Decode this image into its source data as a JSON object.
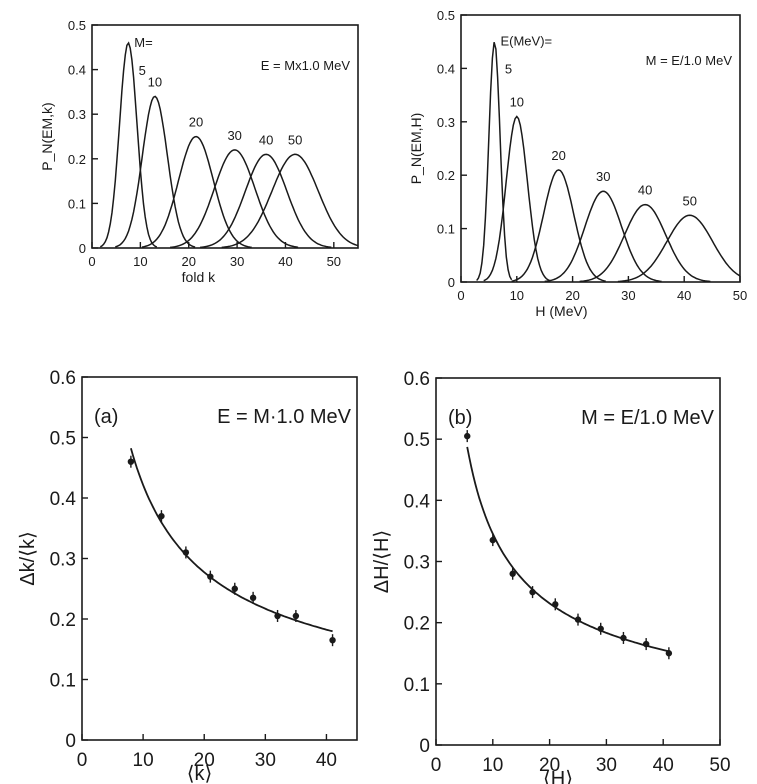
{
  "chart_data": [
    {
      "id": "top-left",
      "type": "line",
      "title": "",
      "xlabel": "fold   k",
      "ylabel": "P_N(EM,k)",
      "xlim": [
        0,
        55
      ],
      "ylim": [
        0,
        0.5
      ],
      "x_ticks": [
        "0",
        "10",
        "20",
        "30",
        "40",
        "50"
      ],
      "y_ticks": [
        "0",
        "0.1",
        "0.2",
        "0.3",
        "0.4",
        "0.5"
      ],
      "annotation": "E = Mx1.0 MeV",
      "label_prefix": "M=",
      "series": [
        {
          "name": "5",
          "peak_x": 7.5,
          "peak_y": 0.46,
          "sigma": 1.8
        },
        {
          "name": "10",
          "peak_x": 13,
          "peak_y": 0.34,
          "sigma": 2.6
        },
        {
          "name": "20",
          "peak_x": 21.5,
          "peak_y": 0.25,
          "sigma": 3.6
        },
        {
          "name": "30",
          "peak_x": 29.5,
          "peak_y": 0.22,
          "sigma": 4.2
        },
        {
          "name": "40",
          "peak_x": 36,
          "peak_y": 0.21,
          "sigma": 4.3
        },
        {
          "name": "50",
          "peak_x": 42,
          "peak_y": 0.21,
          "sigma": 4.8
        }
      ]
    },
    {
      "id": "top-right",
      "type": "line",
      "title": "",
      "xlabel": "H  (MeV)",
      "ylabel": "P_N(EM,H)",
      "xlim": [
        0,
        50
      ],
      "ylim": [
        0,
        0.5
      ],
      "x_ticks": [
        "0",
        "10",
        "20",
        "30",
        "40",
        "50"
      ],
      "y_ticks": [
        "0",
        "0.1",
        "0.2",
        "0.3",
        "0.4",
        "0.5"
      ],
      "annotation": "M = E/1.0 MeV",
      "label_prefix": "E(MeV)=",
      "series": [
        {
          "name": "5",
          "peak_x": 6,
          "peak_y": 0.45,
          "sigma": 1.0
        },
        {
          "name": "10",
          "peak_x": 10,
          "peak_y": 0.31,
          "sigma": 1.9
        },
        {
          "name": "20",
          "peak_x": 17.5,
          "peak_y": 0.21,
          "sigma": 2.7
        },
        {
          "name": "30",
          "peak_x": 25.5,
          "peak_y": 0.17,
          "sigma": 3.3
        },
        {
          "name": "40",
          "peak_x": 33,
          "peak_y": 0.145,
          "sigma": 3.7
        },
        {
          "name": "50",
          "peak_x": 41,
          "peak_y": 0.125,
          "sigma": 4.1
        }
      ]
    },
    {
      "id": "bottom-left",
      "type": "scatter",
      "panel": "(a)",
      "title": "",
      "xlabel": "⟨k⟩",
      "ylabel": "Δk/⟨k⟩",
      "xlim": [
        0,
        45
      ],
      "ylim": [
        0,
        0.6
      ],
      "x_ticks": [
        "0",
        "10",
        "20",
        "30",
        "40"
      ],
      "y_ticks": [
        "0",
        "0.1",
        "0.2",
        "0.3",
        "0.4",
        "0.5",
        "0.6"
      ],
      "annotation": "E = M·1.0 MeV",
      "x": [
        8,
        13,
        17,
        21,
        25,
        28,
        32,
        35,
        41
      ],
      "y": [
        0.46,
        0.37,
        0.31,
        0.27,
        0.25,
        0.235,
        0.205,
        0.205,
        0.165
      ]
    },
    {
      "id": "bottom-right",
      "type": "scatter",
      "panel": "(b)",
      "title": "",
      "xlabel": "⟨H⟩",
      "ylabel": "ΔH/⟨H⟩",
      "xlim": [
        0,
        50
      ],
      "ylim": [
        0,
        0.6
      ],
      "x_ticks": [
        "0",
        "10",
        "20",
        "30",
        "40",
        "50"
      ],
      "y_ticks": [
        "0",
        "0.1",
        "0.2",
        "0.3",
        "0.4",
        "0.5",
        "0.6"
      ],
      "annotation": "M = E/1.0 MeV",
      "x": [
        5.5,
        10,
        13.5,
        17,
        21,
        25,
        29,
        33,
        37,
        41
      ],
      "y": [
        0.505,
        0.335,
        0.28,
        0.25,
        0.23,
        0.205,
        0.19,
        0.175,
        0.165,
        0.15
      ]
    }
  ]
}
